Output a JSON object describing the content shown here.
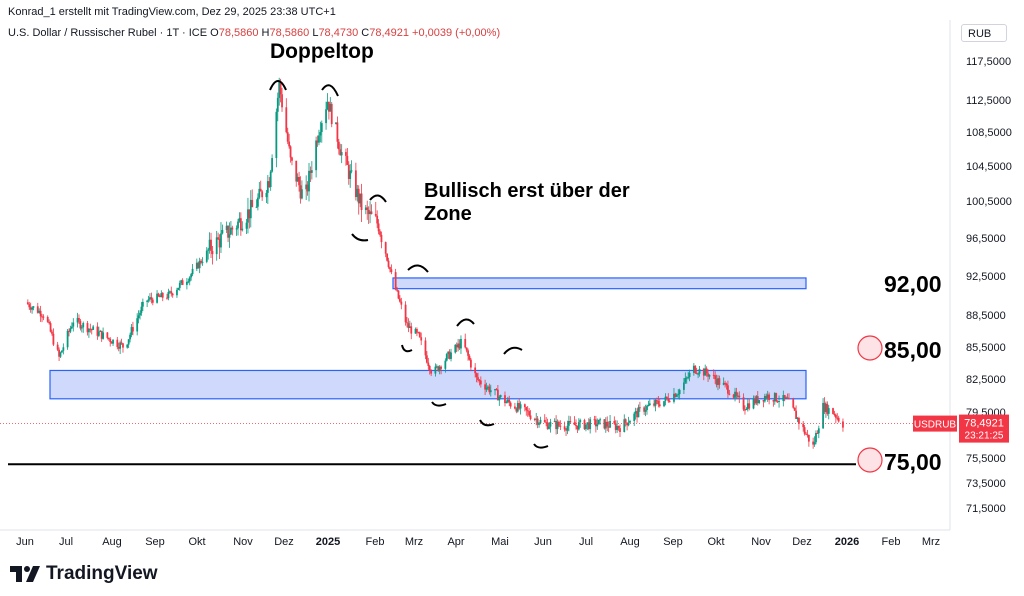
{
  "header": {
    "attribution": "Konrad_1 erstellt mit TradingView.com, Dez 29, 2025 23:38 UTC+1"
  },
  "legend": {
    "symbol": "U.S. Dollar / Russischer Rubel · 1T · ICE",
    "o_label": "O",
    "o_value": "78,5860",
    "h_label": "H",
    "h_value": "78,5860",
    "l_label": "L",
    "l_value": "78,4730",
    "c_label": "C",
    "c_value": "78,4921",
    "change": "+0,0039 (+0,00%)"
  },
  "unit": "RUB",
  "price_tag": {
    "symbol": "USDRUB",
    "price": "78,4921",
    "countdown": "23:21:25",
    "color": "#f23645"
  },
  "annotations": {
    "doppeltop": "Doppeltop",
    "bullisch_line1": "Bullisch erst über der",
    "bullisch_line2": "Zone",
    "level_92": "92,00",
    "level_85": "85,00",
    "level_75": "75,00"
  },
  "footer": {
    "brand": "TradingView"
  },
  "colors": {
    "up": "#089981",
    "down": "#f23645",
    "zone_fill": "#cfd9fb",
    "zone_stroke": "#2962ff",
    "circle": "#f23645"
  },
  "chart_data": {
    "type": "candlestick",
    "title": "U.S. Dollar / Russischer Rubel · 1T · ICE",
    "y_axis": {
      "ticks": [
        "117,5000",
        "112,5000",
        "108,5000",
        "104,5000",
        "100,5000",
        "96,5000",
        "92,5000",
        "88,5000",
        "85,5000",
        "82,5000",
        "79,5000",
        "75,5000",
        "73,5000",
        "71,5000"
      ],
      "range": [
        70,
        120
      ]
    },
    "x_axis": {
      "ticks": [
        {
          "label": "Jun",
          "bold": false
        },
        {
          "label": "Jul",
          "bold": false
        },
        {
          "label": "Aug",
          "bold": false
        },
        {
          "label": "Sep",
          "bold": false
        },
        {
          "label": "Okt",
          "bold": false
        },
        {
          "label": "Nov",
          "bold": false
        },
        {
          "label": "Dez",
          "bold": false
        },
        {
          "label": "2025",
          "bold": true
        },
        {
          "label": "Feb",
          "bold": false
        },
        {
          "label": "Mrz",
          "bold": false
        },
        {
          "label": "Apr",
          "bold": false
        },
        {
          "label": "Mai",
          "bold": false
        },
        {
          "label": "Jun",
          "bold": false
        },
        {
          "label": "Jul",
          "bold": false
        },
        {
          "label": "Aug",
          "bold": false
        },
        {
          "label": "Sep",
          "bold": false
        },
        {
          "label": "Okt",
          "bold": false
        },
        {
          "label": "Nov",
          "bold": false
        },
        {
          "label": "Dez",
          "bold": false
        },
        {
          "label": "2026",
          "bold": true
        },
        {
          "label": "Feb",
          "bold": false
        },
        {
          "label": "Mrz",
          "bold": false
        }
      ]
    },
    "approx_close_path": [
      [
        "2024-06-01",
        89.8
      ],
      [
        "2024-06-15",
        88.5
      ],
      [
        "2024-06-25",
        84.5
      ],
      [
        "2024-07-05",
        88.0
      ],
      [
        "2024-07-20",
        87.0
      ],
      [
        "2024-08-10",
        85.5
      ],
      [
        "2024-08-25",
        90.0
      ],
      [
        "2024-09-10",
        90.5
      ],
      [
        "2024-09-25",
        92.5
      ],
      [
        "2024-10-10",
        95.5
      ],
      [
        "2024-10-25",
        97.5
      ],
      [
        "2024-11-10",
        100.0
      ],
      [
        "2024-11-20",
        103.0
      ],
      [
        "2024-11-27",
        114.5
      ],
      [
        "2024-12-05",
        105.0
      ],
      [
        "2024-12-15",
        100.5
      ],
      [
        "2024-12-25",
        109.0
      ],
      [
        "2024-12-31",
        112.5
      ],
      [
        "2025-01-10",
        106.0
      ],
      [
        "2025-01-25",
        99.5
      ],
      [
        "2025-02-05",
        98.0
      ],
      [
        "2025-02-15",
        92.0
      ],
      [
        "2025-02-25",
        87.5
      ],
      [
        "2025-03-05",
        86.5
      ],
      [
        "2025-03-15",
        83.0
      ],
      [
        "2025-03-25",
        84.5
      ],
      [
        "2025-04-05",
        86.0
      ],
      [
        "2025-04-15",
        82.5
      ],
      [
        "2025-04-25",
        81.5
      ],
      [
        "2025-05-05",
        80.5
      ],
      [
        "2025-05-20",
        79.5
      ],
      [
        "2025-06-01",
        78.5
      ],
      [
        "2025-06-15",
        78.3
      ],
      [
        "2025-06-30",
        78.4
      ],
      [
        "2025-07-10",
        78.5
      ],
      [
        "2025-07-25",
        78.2
      ],
      [
        "2025-08-10",
        79.8
      ],
      [
        "2025-08-25",
        80.5
      ],
      [
        "2025-09-05",
        81.5
      ],
      [
        "2025-09-15",
        83.5
      ],
      [
        "2025-09-25",
        83.0
      ],
      [
        "2025-10-10",
        81.5
      ],
      [
        "2025-10-20",
        80.0
      ],
      [
        "2025-11-05",
        81.0
      ],
      [
        "2025-11-20",
        80.5
      ],
      [
        "2025-12-01",
        78.0
      ],
      [
        "2025-12-08",
        76.5
      ],
      [
        "2025-12-15",
        80.0
      ],
      [
        "2025-12-22",
        79.5
      ],
      [
        "2025-12-29",
        78.49
      ]
    ],
    "zones": [
      {
        "from": 91.2,
        "to": 92.3,
        "start": "2025-02-15",
        "end": "2025-11-25"
      },
      {
        "from": 80.7,
        "to": 83.3,
        "start": "2024-06-25",
        "end": "2025-11-25"
      }
    ],
    "support_line": 75.0
  }
}
